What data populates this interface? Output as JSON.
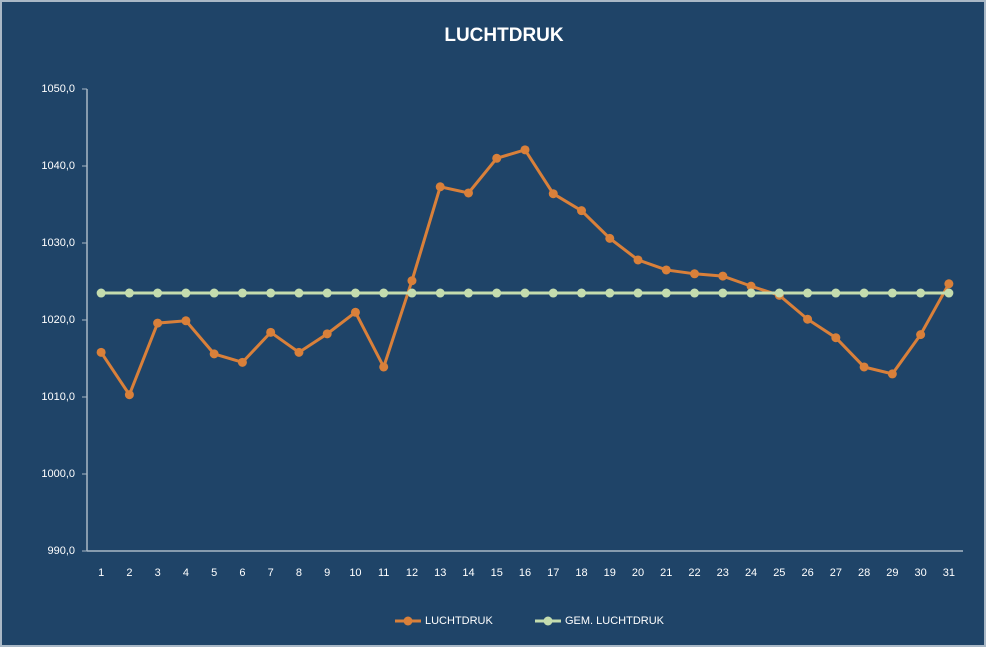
{
  "chart_data": {
    "type": "line",
    "title": "LUCHTDRUK",
    "categories": [
      "1",
      "2",
      "3",
      "4",
      "5",
      "6",
      "7",
      "8",
      "9",
      "10",
      "11",
      "12",
      "13",
      "14",
      "15",
      "16",
      "17",
      "18",
      "19",
      "20",
      "21",
      "22",
      "23",
      "24",
      "25",
      "26",
      "27",
      "28",
      "29",
      "30",
      "31"
    ],
    "series": [
      {
        "name": "LUCHTDRUK",
        "color": "#d9803a",
        "values": [
          1015.8,
          1010.3,
          1019.6,
          1019.9,
          1015.6,
          1014.5,
          1018.4,
          1015.8,
          1018.2,
          1021.0,
          1013.9,
          1025.1,
          1037.3,
          1036.5,
          1041.0,
          1042.1,
          1036.4,
          1034.2,
          1030.6,
          1027.8,
          1026.5,
          1026.0,
          1025.7,
          1024.4,
          1023.2,
          1020.1,
          1017.7,
          1013.9,
          1013.0,
          1018.1,
          1024.7
        ]
      },
      {
        "name": "GEM. LUCHTDRUK",
        "color": "#c4dcae",
        "values": [
          1023.5,
          1023.5,
          1023.5,
          1023.5,
          1023.5,
          1023.5,
          1023.5,
          1023.5,
          1023.5,
          1023.5,
          1023.5,
          1023.5,
          1023.5,
          1023.5,
          1023.5,
          1023.5,
          1023.5,
          1023.5,
          1023.5,
          1023.5,
          1023.5,
          1023.5,
          1023.5,
          1023.5,
          1023.5,
          1023.5,
          1023.5,
          1023.5,
          1023.5,
          1023.5,
          1023.5
        ]
      }
    ],
    "ylim": [
      990,
      1050
    ],
    "yticks": [
      {
        "value": 990,
        "label": "990,0"
      },
      {
        "value": 1000,
        "label": "1000,0"
      },
      {
        "value": 1010,
        "label": "1010,0"
      },
      {
        "value": 1020,
        "label": "1020,0"
      },
      {
        "value": 1030,
        "label": "1030,0"
      },
      {
        "value": 1040,
        "label": "1040,0"
      },
      {
        "value": 1050,
        "label": "1050,0"
      }
    ],
    "grid": false,
    "legend": "bottom"
  }
}
